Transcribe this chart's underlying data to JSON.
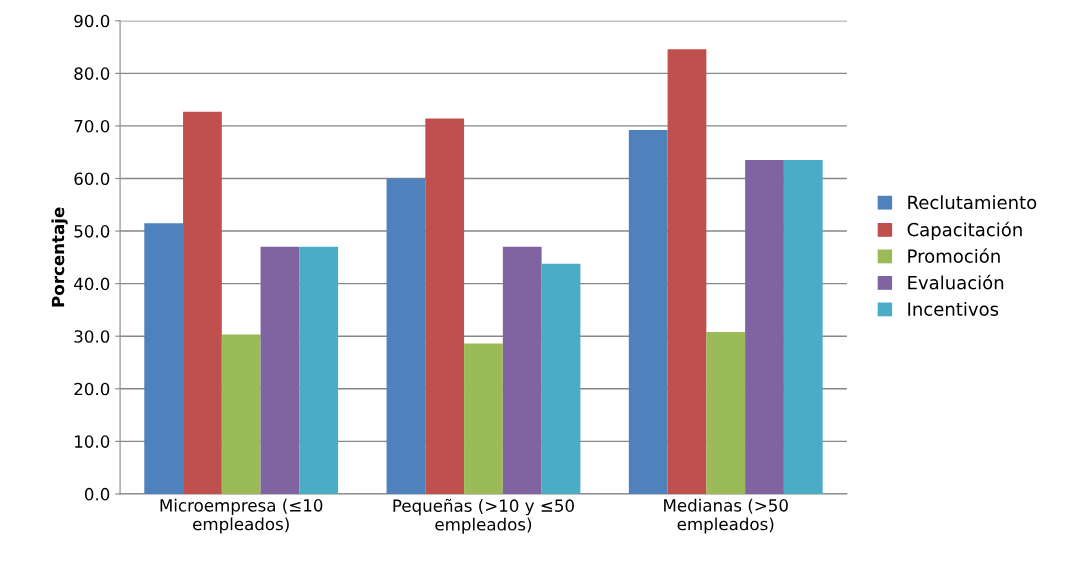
{
  "chart_data": {
    "type": "bar",
    "ylabel": "Porcentaje",
    "categories": [
      "Microempresa (≤10\nempleados)",
      "Pequeñas (>10 y ≤50\nempleados)",
      "Medianas (>50\nempleados)"
    ],
    "series": [
      {
        "name": "Reclutamiento",
        "color": "#4f81bd",
        "values": [
          51.5,
          60.0,
          69.2
        ]
      },
      {
        "name": "Capacitación",
        "color": "#c0504d",
        "values": [
          72.7,
          71.4,
          84.6
        ]
      },
      {
        "name": "Promoción",
        "color": "#9bbb59",
        "values": [
          30.3,
          28.6,
          30.8
        ]
      },
      {
        "name": "Evaluación",
        "color": "#8064a2",
        "values": [
          47.0,
          47.0,
          63.5
        ]
      },
      {
        "name": "Incentivos",
        "color": "#4bacc6",
        "values": [
          47.0,
          43.8,
          63.5
        ]
      }
    ],
    "ylim": [
      0,
      90
    ],
    "yticks": [
      {
        "value": 0,
        "label": "0.0"
      },
      {
        "value": 10,
        "label": "10.0"
      },
      {
        "value": 20,
        "label": "20.0"
      },
      {
        "value": 30,
        "label": "30.0"
      },
      {
        "value": 40,
        "label": "40.0"
      },
      {
        "value": 50,
        "label": "50.0"
      },
      {
        "value": 60,
        "label": "60.0"
      },
      {
        "value": 70,
        "label": "70.0"
      },
      {
        "value": 80,
        "label": "80.0"
      },
      {
        "value": 90,
        "label": "90.0"
      }
    ],
    "grid": "y",
    "legend": "right"
  }
}
